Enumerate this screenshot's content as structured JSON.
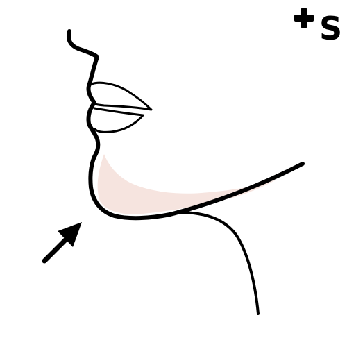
{
  "illustration": {
    "subject": "jaw-line-profile",
    "colors": {
      "outline": "#000000",
      "highlight_fill": "#f6e4df",
      "background": "#ffffff"
    },
    "arrow_icon": "arrow-up-right-icon"
  },
  "logo": {
    "plus_icon": "plus-icon",
    "letter": "S",
    "color": "#000000"
  }
}
